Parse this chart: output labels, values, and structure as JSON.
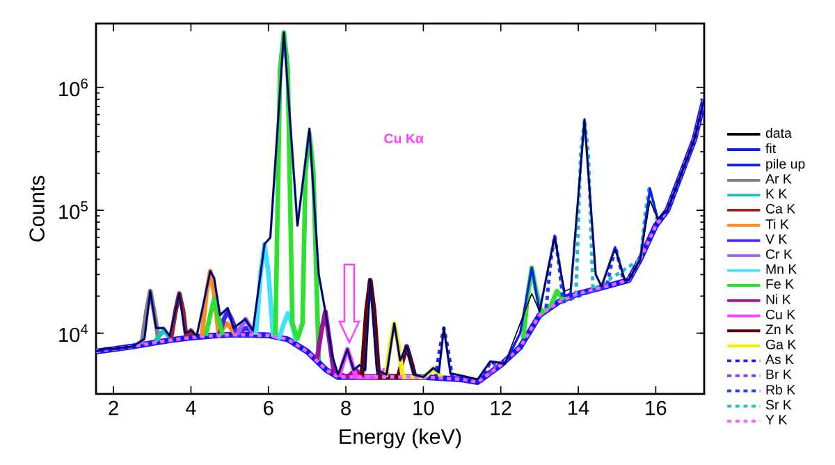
{
  "chart_data": {
    "type": "line",
    "xlabel": "Energy (keV)",
    "ylabel": "Counts",
    "log": "y",
    "legend": "right",
    "marker": "none",
    "line_style": "solid",
    "xlim": [
      1.55,
      17.25
    ],
    "ylim": [
      3200,
      3300000
    ],
    "xticks": [
      2,
      4,
      6,
      8,
      10,
      12,
      14,
      16
    ],
    "yticks": [
      {
        "value": 10000,
        "label": "10$^{4}$"
      },
      {
        "value": 100000,
        "label": "10$^{5}$"
      },
      {
        "value": 1000000,
        "label": "10$^{6}$"
      }
    ],
    "annotations": [
      "Cu Kα"
    ],
    "series": [
      {
        "name": "data",
        "color": "#000000",
        "x": [
          1.55,
          1.8,
          2.0,
          2.5,
          2.8,
          2.95,
          3.1,
          3.3,
          3.45,
          3.7,
          3.85,
          4.0,
          4.15,
          4.5,
          4.6,
          4.75,
          4.95,
          5.1,
          5.4,
          5.6,
          5.9,
          6.05,
          6.4,
          6.75,
          7.06,
          7.3,
          7.47,
          7.65,
          7.8,
          8.04,
          8.2,
          8.35,
          8.5,
          8.63,
          8.8,
          9.05,
          9.25,
          9.4,
          9.57,
          9.75,
          10.0,
          10.26,
          10.4,
          10.53,
          10.7,
          11.0,
          11.4,
          11.73,
          11.9,
          12.1,
          12.5,
          12.8,
          13.0,
          13.39,
          13.65,
          13.8,
          14.16,
          14.45,
          14.6,
          14.95,
          15.2,
          15.3,
          15.6,
          15.85,
          16.05,
          16.3,
          17.0,
          17.25
        ],
        "values": [
          7100,
          7600,
          7500,
          7800,
          9000,
          22000,
          11000,
          11000,
          9500,
          21000,
          10000,
          10500,
          9500,
          32000,
          28000,
          14000,
          16000,
          11000,
          13000,
          10500,
          53000,
          60000,
          2800000,
          75000,
          460000,
          30000,
          15000,
          6500,
          4600,
          7400,
          5000,
          5500,
          5000,
          27000,
          5000,
          4600,
          12000,
          6000,
          7800,
          4600,
          4400,
          5200,
          4800,
          11000,
          4700,
          4500,
          4200,
          5900,
          5800,
          5600,
          12000,
          21000,
          15000,
          60000,
          22000,
          23000,
          540000,
          30000,
          24000,
          48000,
          27000,
          27000,
          40000,
          120000,
          85000,
          100000,
          380000,
          800000
        ]
      },
      {
        "name": "fit",
        "color": "#0a1aff",
        "x": [
          1.55,
          1.8,
          2.0,
          2.5,
          2.8,
          2.95,
          3.1,
          3.3,
          3.45,
          3.7,
          3.85,
          4.0,
          4.15,
          4.5,
          4.6,
          4.75,
          4.95,
          5.1,
          5.4,
          5.6,
          5.9,
          6.05,
          6.4,
          6.75,
          7.06,
          7.3,
          7.47,
          7.65,
          7.8,
          8.04,
          8.2,
          8.35,
          8.5,
          8.63,
          8.8,
          9.05,
          9.25,
          9.4,
          9.57,
          9.75,
          10.0,
          10.26,
          10.4,
          10.53,
          10.7,
          11.0,
          11.4,
          11.73,
          11.9,
          12.1,
          12.5,
          12.8,
          13.0,
          13.39,
          13.65,
          13.8,
          14.16,
          14.45,
          14.6,
          14.95,
          15.2,
          15.3,
          15.6,
          15.85,
          16.05,
          16.3,
          17.0,
          17.25
        ],
        "values": [
          7100,
          7400,
          7400,
          7800,
          9000,
          22000,
          11000,
          11000,
          9500,
          21000,
          10000,
          10500,
          9500,
          32000,
          28000,
          14000,
          16000,
          11000,
          13000,
          10500,
          53000,
          60000,
          2800000,
          75000,
          460000,
          30000,
          15000,
          6500,
          4600,
          7400,
          5000,
          5500,
          5000,
          27000,
          5000,
          4600,
          12000,
          6000,
          7800,
          4600,
          4400,
          5200,
          4800,
          11000,
          4700,
          4500,
          4200,
          5900,
          5800,
          5600,
          10000,
          34000,
          15000,
          62000,
          20000,
          21000,
          550000,
          30000,
          24000,
          50000,
          27000,
          27000,
          40000,
          150000,
          85000,
          100000,
          380000,
          800000
        ]
      },
      {
        "name": "pile up",
        "color": "#0a1aff",
        "x": [
          1.55,
          2,
          2.5,
          3,
          3.5,
          4,
          4.5,
          5,
          5.5,
          6,
          6.5,
          7,
          7.5,
          7.8,
          8,
          9,
          10,
          11,
          11.4,
          12,
          12.5,
          13,
          13.5,
          14,
          14.5,
          15.3,
          15.6,
          16,
          16.3,
          17,
          17.25
        ],
        "values": [
          7100,
          7400,
          7800,
          8300,
          8800,
          9200,
          9500,
          9700,
          9700,
          9600,
          8900,
          7100,
          5000,
          4400,
          4400,
          4400,
          4400,
          4200,
          4000,
          5500,
          7700,
          14000,
          18000,
          21000,
          23000,
          27000,
          40000,
          75000,
          100000,
          380000,
          800000
        ]
      },
      {
        "name": "Ar K",
        "color": "#808080",
        "x": [
          2.73,
          2.85,
          2.95,
          3.05,
          3.17
        ],
        "values": [
          8100,
          15000,
          22000,
          15000,
          8600
        ]
      },
      {
        "name": "K K",
        "color": "#20c0c0",
        "x": [
          3.08,
          3.2,
          3.3,
          3.4,
          3.52
        ],
        "values": [
          8600,
          9700,
          10500,
          9700,
          9000
        ]
      },
      {
        "name": "Ca K",
        "color": "#a02020",
        "x": [
          3.48,
          3.6,
          3.7,
          3.8,
          3.88,
          4.0,
          4.12
        ],
        "values": [
          8900,
          15000,
          21000,
          15000,
          9300,
          10500,
          9300
        ]
      },
      {
        "name": "Ti K",
        "color": "#ff8c1a",
        "x": [
          4.28,
          4.4,
          4.5,
          4.6,
          4.72,
          4.83,
          4.93,
          5.03,
          5.15
        ],
        "values": [
          9300,
          21000,
          32000,
          21000,
          9600,
          11000,
          12000,
          11000,
          9700
        ]
      },
      {
        "name": "V K",
        "color": "#4020ff",
        "x": [
          4.73,
          4.85,
          4.95,
          5.05,
          5.2,
          5.3,
          5.43,
          5.55,
          5.65
        ],
        "values": [
          9600,
          13000,
          15000,
          13000,
          9700,
          10500,
          11000,
          10500,
          9700
        ]
      },
      {
        "name": "Cr K",
        "color": "#a060ff",
        "x": [
          5.19,
          5.31,
          5.41,
          5.51,
          5.63
        ],
        "values": [
          9700,
          11500,
          13000,
          11500,
          9700
        ]
      },
      {
        "name": "Mn K",
        "color": "#40e0ff",
        "x": [
          5.68,
          5.8,
          5.9,
          6.0,
          6.12,
          6.28,
          6.4,
          6.5,
          6.6,
          6.72
        ],
        "values": [
          9700,
          31000,
          53000,
          31000,
          9600,
          9200,
          12000,
          14500,
          12000,
          8600
        ]
      },
      {
        "name": "Fe K",
        "color": "#30e030",
        "x": [
          4.38,
          4.5,
          4.6,
          4.7,
          4.82,
          5.5,
          6.18,
          6.3,
          6.4,
          6.5,
          6.62,
          6.75,
          6.88,
          6.96,
          7.06,
          7.16,
          7.3,
          10.0,
          12.58,
          12.7,
          12.8,
          12.9,
          13.05,
          13.3,
          13.45,
          13.6,
          13.72
        ],
        "values": [
          9500,
          14000,
          19000,
          14000,
          9600,
          null,
          9500,
          1400000,
          2800000,
          1400000,
          12000,
          9000,
          12000,
          210000,
          420000,
          210000,
          6000,
          null,
          9000,
          21000,
          34000,
          23000,
          14500,
          17000,
          22000,
          19000,
          19500
        ]
      },
      {
        "name": "Ni K",
        "color": "#a010a0",
        "x": [
          7.25,
          7.37,
          7.47,
          7.57,
          7.69,
          8.05,
          8.15,
          8.26,
          8.36,
          8.48
        ],
        "values": [
          6000,
          10500,
          15000,
          9000,
          4800,
          4400,
          4700,
          5000,
          4700,
          4400
        ]
      },
      {
        "name": "Cu K",
        "color": "#ff40ff",
        "x": [
          7.82,
          7.94,
          8.04,
          8.14,
          8.26,
          8.78,
          8.9,
          9.0,
          9.12
        ],
        "values": [
          4400,
          5900,
          7400,
          5900,
          4400,
          4400,
          4700,
          5000,
          4400
        ]
      },
      {
        "name": "Zn K",
        "color": "#600000",
        "x": [
          8.41,
          8.53,
          8.63,
          8.73,
          8.85,
          9.35,
          9.47,
          9.57,
          9.67,
          9.79
        ],
        "values": [
          4400,
          15000,
          27000,
          15000,
          4400,
          4400,
          6100,
          7800,
          6100,
          4400
        ]
      },
      {
        "name": "Ga K",
        "color": "#f0f000",
        "x": [
          9.03,
          9.15,
          9.25,
          9.35,
          9.47,
          10.04,
          10.16,
          10.26,
          10.36,
          10.48
        ],
        "values": [
          4400,
          8200,
          12000,
          8200,
          4400,
          4400,
          4800,
          5200,
          4800,
          4400
        ]
      },
      {
        "name": "As K",
        "color": "#2020ff",
        "line_style": "dashed",
        "x": [
          10.31,
          10.43,
          10.53,
          10.63,
          10.75,
          11.51,
          11.63,
          11.73,
          11.83,
          11.95
        ],
        "values": [
          4300,
          7600,
          11000,
          7600,
          4300,
          4100,
          5000,
          5900,
          5700,
          5400
        ]
      },
      {
        "name": "Br K",
        "color": "#8040ff",
        "line_style": "dashed",
        "x": [
          11.7,
          11.82,
          11.92,
          12.02,
          12.14
        ],
        "values": [
          4600,
          5200,
          5800,
          5700,
          5900
        ]
      },
      {
        "name": "Rb K",
        "color": "#2040ff",
        "line_style": "dashed",
        "x": [
          13.17,
          13.29,
          13.39,
          13.49,
          13.61,
          14.74,
          14.86,
          14.96,
          15.06,
          15.18
        ],
        "values": [
          16000,
          39000,
          62000,
          39000,
          18000,
          24500,
          37000,
          50000,
          37000,
          26000
        ]
      },
      {
        "name": "Sr K",
        "color": "#20c0c0",
        "line_style": "dashed",
        "x": [
          13.94,
          14.06,
          14.16,
          14.26,
          14.38,
          15.61,
          15.73,
          15.83,
          15.93,
          16.05
        ],
        "values": [
          20500,
          285000,
          550000,
          285000,
          22500,
          40000,
          95000,
          150000,
          115000,
          80000
        ]
      },
      {
        "name": "Y K",
        "color": "#ff60ff",
        "line_style": "dashed",
        "x": [
          1.55,
          2,
          2.5,
          3,
          3.5,
          4,
          4.5,
          5,
          5.5,
          6,
          6.5,
          7,
          7.5,
          7.8,
          8,
          9,
          10,
          11,
          11.4,
          12,
          12.5,
          13,
          13.5,
          14,
          14.5,
          15.3,
          15.6,
          16,
          16.3,
          17,
          17.25
        ],
        "values": [
          7100,
          7400,
          7800,
          8300,
          8800,
          9200,
          9500,
          9700,
          9700,
          9600,
          8900,
          7100,
          5000,
          4400,
          4400,
          4400,
          4400,
          4200,
          4000,
          5500,
          7700,
          14000,
          18000,
          21000,
          23000,
          27000,
          40000,
          75000,
          100000,
          380000,
          800000
        ]
      }
    ]
  }
}
